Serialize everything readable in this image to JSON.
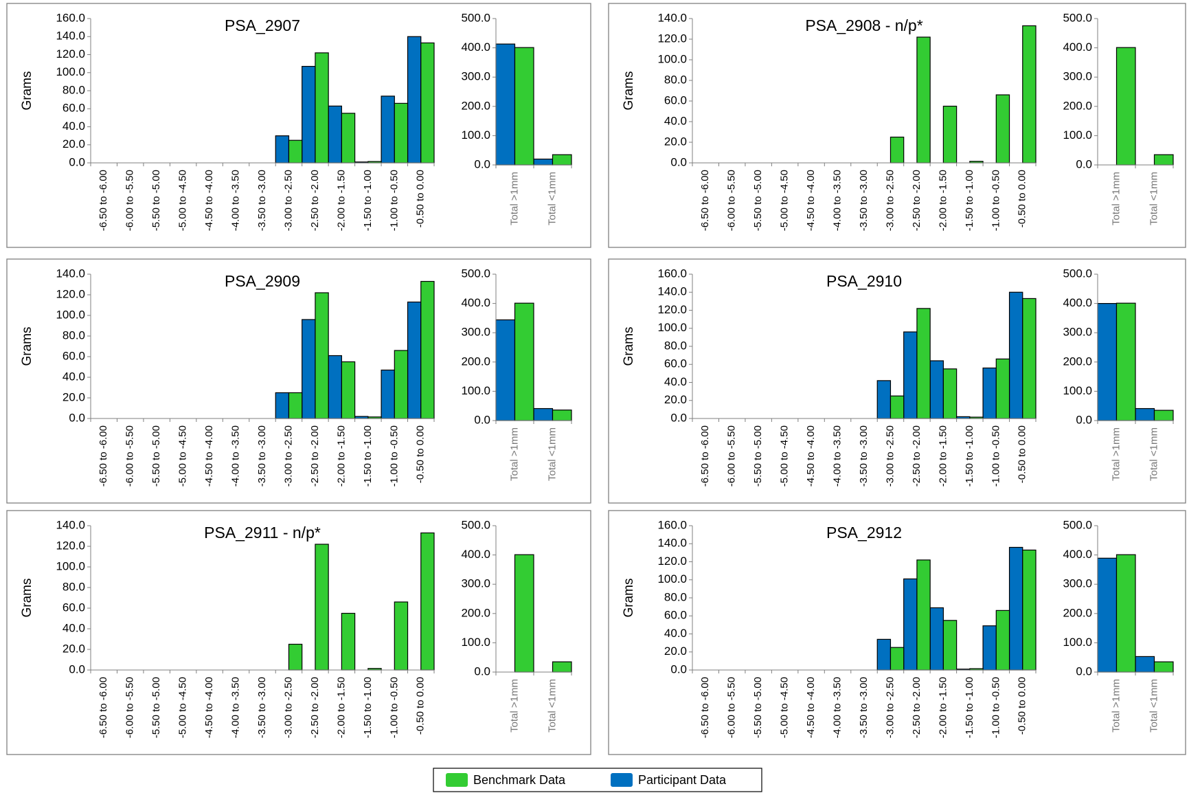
{
  "chart_data": [
    {
      "type": "bar",
      "title": "PSA_2907",
      "y_label": "Grams",
      "categories": [
        "-6.50 to -6.00",
        "-6.00 to -5.50",
        "-5.50 to -5.00",
        "-5.00 to -4.50",
        "-4.50 to -4.00",
        "-4.00 to -3.50",
        "-3.50 to -3.00",
        "-3.00 to -2.50",
        "-2.50 to -2.00",
        "-2.00 to -1.50",
        "-1.50 to -1.00",
        "-1.00 to -0.50",
        "-0.50 to 0.00"
      ],
      "ylim": [
        0,
        160
      ],
      "yticks": [
        {
          "value": 0,
          "label": "0.0"
        },
        {
          "value": 20,
          "label": "20.0"
        },
        {
          "value": 40,
          "label": "40.0"
        },
        {
          "value": 60,
          "label": "60.0"
        },
        {
          "value": 80,
          "label": "80.0"
        },
        {
          "value": 100,
          "label": "100.0"
        },
        {
          "value": 120,
          "label": "120.0"
        },
        {
          "value": 140,
          "label": "140.0"
        },
        {
          "value": 160,
          "label": "160.0"
        }
      ],
      "series": [
        {
          "name": "Participant Data",
          "color": "#0070c0",
          "values": [
            0,
            0,
            0,
            0,
            0,
            0,
            0,
            30,
            107,
            63,
            1,
            74,
            140
          ]
        },
        {
          "name": "Benchmark Data",
          "color": "#33cc33",
          "values": [
            0,
            0,
            0,
            0,
            0,
            0,
            0,
            25,
            122,
            55,
            1.5,
            66,
            133
          ]
        }
      ],
      "totals": {
        "type": "bar",
        "categories": [
          "Total >1mm",
          "Total <1mm"
        ],
        "ylim": [
          0,
          500
        ],
        "yticks": [
          {
            "value": 0,
            "label": "0.0"
          },
          {
            "value": 100,
            "label": "100.0"
          },
          {
            "value": 200,
            "label": "200.0"
          },
          {
            "value": 300,
            "label": "300.0"
          },
          {
            "value": 400,
            "label": "400.0"
          },
          {
            "value": 500,
            "label": "500.0"
          }
        ],
        "series": [
          {
            "color": "#0070c0",
            "values": [
              413,
              20
            ]
          },
          {
            "color": "#33cc33",
            "values": [
              401,
              35
            ]
          }
        ]
      }
    },
    {
      "type": "bar",
      "title": "PSA_2908 - n/p*",
      "y_label": "Grams",
      "categories": [
        "-6.50 to -6.00",
        "-6.00 to -5.50",
        "-5.50 to -5.00",
        "-5.00 to -4.50",
        "-4.50 to -4.00",
        "-4.00 to -3.50",
        "-3.50 to -3.00",
        "-3.00 to -2.50",
        "-2.50 to -2.00",
        "-2.00 to -1.50",
        "-1.50 to -1.00",
        "-1.00 to -0.50",
        "-0.50 to 0.00"
      ],
      "ylim": [
        0,
        140
      ],
      "yticks": [
        {
          "value": 0,
          "label": "0.0"
        },
        {
          "value": 20,
          "label": "20.0"
        },
        {
          "value": 40,
          "label": "40.0"
        },
        {
          "value": 60,
          "label": "60.0"
        },
        {
          "value": 80,
          "label": "80.0"
        },
        {
          "value": 100,
          "label": "100.0"
        },
        {
          "value": 120,
          "label": "120.0"
        },
        {
          "value": 140,
          "label": "140.0"
        }
      ],
      "series": [
        {
          "name": "Participant Data",
          "color": "#0070c0",
          "values": [
            null,
            null,
            null,
            null,
            null,
            null,
            null,
            null,
            null,
            null,
            null,
            null,
            null
          ]
        },
        {
          "name": "Benchmark Data",
          "color": "#33cc33",
          "values": [
            0,
            0,
            0,
            0,
            0,
            0,
            0,
            25,
            122,
            55,
            1.5,
            66,
            133
          ]
        }
      ],
      "totals": {
        "type": "bar",
        "categories": [
          "Total >1mm",
          "Total <1mm"
        ],
        "ylim": [
          0,
          500
        ],
        "yticks": [
          {
            "value": 0,
            "label": "0.0"
          },
          {
            "value": 100,
            "label": "100.0"
          },
          {
            "value": 200,
            "label": "200.0"
          },
          {
            "value": 300,
            "label": "300.0"
          },
          {
            "value": 400,
            "label": "400.0"
          },
          {
            "value": 500,
            "label": "500.0"
          }
        ],
        "series": [
          {
            "color": "#0070c0",
            "values": [
              null,
              null
            ]
          },
          {
            "color": "#33cc33",
            "values": [
              401,
              35
            ]
          }
        ]
      }
    },
    {
      "type": "bar",
      "title": "PSA_2909",
      "y_label": "Grams",
      "categories": [
        "-6.50 to -6.00",
        "-6.00 to -5.50",
        "-5.50 to -5.00",
        "-5.00 to -4.50",
        "-4.50 to -4.00",
        "-4.00 to -3.50",
        "-3.50 to -3.00",
        "-3.00 to -2.50",
        "-2.50 to -2.00",
        "-2.00 to -1.50",
        "-1.50 to -1.00",
        "-1.00 to -0.50",
        "-0.50 to 0.00"
      ],
      "ylim": [
        0,
        140
      ],
      "yticks": [
        {
          "value": 0,
          "label": "0.0"
        },
        {
          "value": 20,
          "label": "20.0"
        },
        {
          "value": 40,
          "label": "40.0"
        },
        {
          "value": 60,
          "label": "60.0"
        },
        {
          "value": 80,
          "label": "80.0"
        },
        {
          "value": 100,
          "label": "100.0"
        },
        {
          "value": 120,
          "label": "120.0"
        },
        {
          "value": 140,
          "label": "140.0"
        }
      ],
      "series": [
        {
          "name": "Participant Data",
          "color": "#0070c0",
          "values": [
            0,
            0,
            0,
            0,
            0,
            0,
            0,
            25,
            96,
            61,
            2,
            47,
            113
          ]
        },
        {
          "name": "Benchmark Data",
          "color": "#33cc33",
          "values": [
            0,
            0,
            0,
            0,
            0,
            0,
            0,
            25,
            122,
            55,
            1.5,
            66,
            133
          ]
        }
      ],
      "totals": {
        "type": "bar",
        "categories": [
          "Total >1mm",
          "Total <1mm"
        ],
        "ylim": [
          0,
          500
        ],
        "yticks": [
          {
            "value": 0,
            "label": "0.0"
          },
          {
            "value": 100,
            "label": "100.0"
          },
          {
            "value": 200,
            "label": "200.0"
          },
          {
            "value": 300,
            "label": "300.0"
          },
          {
            "value": 400,
            "label": "400.0"
          },
          {
            "value": 500,
            "label": "500.0"
          }
        ],
        "series": [
          {
            "color": "#0070c0",
            "values": [
              344,
              41
            ]
          },
          {
            "color": "#33cc33",
            "values": [
              401,
              36
            ]
          }
        ]
      }
    },
    {
      "type": "bar",
      "title": "PSA_2910",
      "y_label": "Grams",
      "categories": [
        "-6.50 to -6.00",
        "-6.00 to -5.50",
        "-5.50 to -5.00",
        "-5.00 to -4.50",
        "-4.50 to -4.00",
        "-4.00 to -3.50",
        "-3.50 to -3.00",
        "-3.00 to -2.50",
        "-2.50 to -2.00",
        "-2.00 to -1.50",
        "-1.50 to -1.00",
        "-1.00 to -0.50",
        "-0.50 to 0.00"
      ],
      "ylim": [
        0,
        160
      ],
      "yticks": [
        {
          "value": 0,
          "label": "0.0"
        },
        {
          "value": 20,
          "label": "20.0"
        },
        {
          "value": 40,
          "label": "40.0"
        },
        {
          "value": 60,
          "label": "60.0"
        },
        {
          "value": 80,
          "label": "80.0"
        },
        {
          "value": 100,
          "label": "100.0"
        },
        {
          "value": 120,
          "label": "120.0"
        },
        {
          "value": 140,
          "label": "140.0"
        },
        {
          "value": 160,
          "label": "160.0"
        }
      ],
      "series": [
        {
          "name": "Participant Data",
          "color": "#0070c0",
          "values": [
            0,
            0,
            0,
            0,
            0,
            0,
            0,
            42,
            96,
            64,
            2,
            56,
            140
          ]
        },
        {
          "name": "Benchmark Data",
          "color": "#33cc33",
          "values": [
            0,
            0,
            0,
            0,
            0,
            0,
            0,
            25,
            122,
            55,
            1.5,
            66,
            133
          ]
        }
      ],
      "totals": {
        "type": "bar",
        "categories": [
          "Total >1mm",
          "Total <1mm"
        ],
        "ylim": [
          0,
          500
        ],
        "yticks": [
          {
            "value": 0,
            "label": "0.0"
          },
          {
            "value": 100,
            "label": "100.0"
          },
          {
            "value": 200,
            "label": "200.0"
          },
          {
            "value": 300,
            "label": "300.0"
          },
          {
            "value": 400,
            "label": "400.0"
          },
          {
            "value": 500,
            "label": "500.0"
          }
        ],
        "series": [
          {
            "color": "#0070c0",
            "values": [
              400,
              41
            ]
          },
          {
            "color": "#33cc33",
            "values": [
              401,
              35
            ]
          }
        ]
      }
    },
    {
      "type": "bar",
      "title": "PSA_2911 - n/p*",
      "y_label": "Grams",
      "categories": [
        "-6.50 to -6.00",
        "-6.00 to -5.50",
        "-5.50 to -5.00",
        "-5.00 to -4.50",
        "-4.50 to -4.00",
        "-4.00 to -3.50",
        "-3.50 to -3.00",
        "-3.00 to -2.50",
        "-2.50 to -2.00",
        "-2.00 to -1.50",
        "-1.50 to -1.00",
        "-1.00 to -0.50",
        "-0.50 to 0.00"
      ],
      "ylim": [
        0,
        140
      ],
      "yticks": [
        {
          "value": 0,
          "label": "0.0"
        },
        {
          "value": 20,
          "label": "20.0"
        },
        {
          "value": 40,
          "label": "40.0"
        },
        {
          "value": 60,
          "label": "60.0"
        },
        {
          "value": 80,
          "label": "80.0"
        },
        {
          "value": 100,
          "label": "100.0"
        },
        {
          "value": 120,
          "label": "120.0"
        },
        {
          "value": 140,
          "label": "140.0"
        }
      ],
      "series": [
        {
          "name": "Participant Data",
          "color": "#0070c0",
          "values": [
            null,
            null,
            null,
            null,
            null,
            null,
            null,
            null,
            null,
            null,
            null,
            null,
            null
          ]
        },
        {
          "name": "Benchmark Data",
          "color": "#33cc33",
          "values": [
            0,
            0,
            0,
            0,
            0,
            0,
            0,
            25,
            122,
            55,
            1.5,
            66,
            133
          ]
        }
      ],
      "totals": {
        "type": "bar",
        "categories": [
          "Total >1mm",
          "Total <1mm"
        ],
        "ylim": [
          0,
          500
        ],
        "yticks": [
          {
            "value": 0,
            "label": "0.0"
          },
          {
            "value": 100,
            "label": "100.0"
          },
          {
            "value": 200,
            "label": "200.0"
          },
          {
            "value": 300,
            "label": "300.0"
          },
          {
            "value": 400,
            "label": "400.0"
          },
          {
            "value": 500,
            "label": "500.0"
          }
        ],
        "series": [
          {
            "color": "#0070c0",
            "values": [
              null,
              null
            ]
          },
          {
            "color": "#33cc33",
            "values": [
              401,
              35
            ]
          }
        ]
      }
    },
    {
      "type": "bar",
      "title": "PSA_2912",
      "y_label": "Grams",
      "categories": [
        "-6.50 to -6.00",
        "-6.00 to -5.50",
        "-5.50 to -5.00",
        "-5.00 to -4.50",
        "-4.50 to -4.00",
        "-4.00 to -3.50",
        "-3.50 to -3.00",
        "-3.00 to -2.50",
        "-2.50 to -2.00",
        "-2.00 to -1.50",
        "-1.50 to -1.00",
        "-1.00 to -0.50",
        "-0.50 to 0.00"
      ],
      "ylim": [
        0,
        160
      ],
      "yticks": [
        {
          "value": 0,
          "label": "0.0"
        },
        {
          "value": 20,
          "label": "20.0"
        },
        {
          "value": 40,
          "label": "40.0"
        },
        {
          "value": 60,
          "label": "60.0"
        },
        {
          "value": 80,
          "label": "80.0"
        },
        {
          "value": 100,
          "label": "100.0"
        },
        {
          "value": 120,
          "label": "120.0"
        },
        {
          "value": 140,
          "label": "140.0"
        },
        {
          "value": 160,
          "label": "160.0"
        }
      ],
      "series": [
        {
          "name": "Participant Data",
          "color": "#0070c0",
          "values": [
            0,
            0,
            0,
            0,
            0,
            0,
            0,
            34,
            101,
            69,
            1,
            49,
            136
          ]
        },
        {
          "name": "Benchmark Data",
          "color": "#33cc33",
          "values": [
            0,
            0,
            0,
            0,
            0,
            0,
            0,
            25,
            122,
            55,
            1.5,
            66,
            133
          ]
        }
      ],
      "totals": {
        "type": "bar",
        "categories": [
          "Total >1mm",
          "Total <1mm"
        ],
        "ylim": [
          0,
          500
        ],
        "yticks": [
          {
            "value": 0,
            "label": "0.0"
          },
          {
            "value": 100,
            "label": "100.0"
          },
          {
            "value": 200,
            "label": "200.0"
          },
          {
            "value": 300,
            "label": "300.0"
          },
          {
            "value": 400,
            "label": "400.0"
          },
          {
            "value": 500,
            "label": "500.0"
          }
        ],
        "series": [
          {
            "color": "#0070c0",
            "values": [
              389,
              53
            ]
          },
          {
            "color": "#33cc33",
            "values": [
              401,
              35
            ]
          }
        ]
      }
    }
  ]
}
